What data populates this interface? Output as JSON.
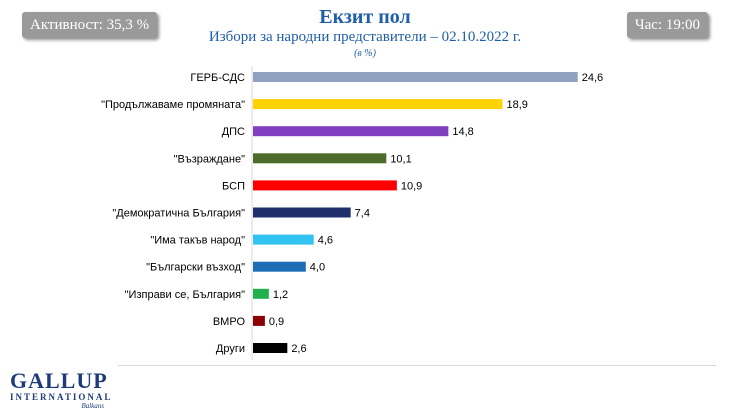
{
  "header": {
    "turnout_label": "Активност: 35,3 %",
    "time_label": "Час: 19:00",
    "title": "Екзит пол",
    "subtitle": "Избори за народни представители – 02.10.2022 г.",
    "unit": "(в %)"
  },
  "logo": {
    "main": "GALLUP",
    "sub": "INTERNATIONAL",
    "tag": "Balkans"
  },
  "chart_data": {
    "type": "bar",
    "orientation": "horizontal",
    "title": "Екзит пол",
    "subtitle": "Избори за народни представители – 02.10.2022 г.",
    "unit": "(в %)",
    "xlim": [
      0,
      25
    ],
    "categories": [
      "ГЕРБ-СДС",
      "\"Продължаваме промяната\"",
      "ДПС",
      "\"Възраждане\"",
      "БСП",
      "\"Демократична България\"",
      "\"Има такъв народ\"",
      "\"Български възход\"",
      "\"Изправи се, България\"",
      "ВМРО",
      "Други"
    ],
    "values": [
      24.6,
      18.9,
      14.8,
      10.1,
      10.9,
      7.4,
      4.6,
      4.0,
      1.2,
      0.9,
      2.6
    ],
    "value_labels": [
      "24,6",
      "18,9",
      "14,8",
      "10,1",
      "10,9",
      "7,4",
      "4,6",
      "4,0",
      "1,2",
      "0,9",
      "2,6"
    ],
    "colors": [
      "#8FA1BF",
      "#FFD200",
      "#7F3FBF",
      "#4E6B2E",
      "#FF0000",
      "#1F2F6B",
      "#33C3F0",
      "#1F6DB5",
      "#22B14C",
      "#8B0000",
      "#000000"
    ]
  }
}
